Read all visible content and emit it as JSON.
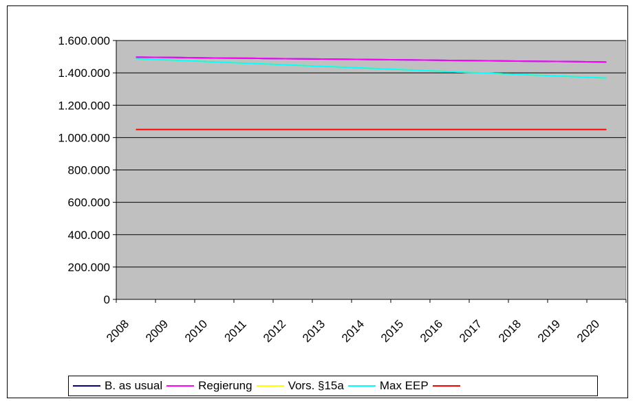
{
  "chart_data": {
    "type": "line",
    "title": "",
    "xlabel": "",
    "ylabel": "",
    "x": [
      "2008",
      "2009",
      "2010",
      "2011",
      "2012",
      "2013",
      "2014",
      "2015",
      "2016",
      "2017",
      "2018",
      "2019",
      "2020"
    ],
    "ylim": [
      0,
      1600000
    ],
    "y_ticks": [
      0,
      200000,
      400000,
      600000,
      800000,
      1000000,
      1200000,
      1400000,
      1600000
    ],
    "y_tick_labels": [
      "0",
      "200.000",
      "400.000",
      "600.000",
      "800.000",
      "1.000.000",
      "1.200.000",
      "1.400.000",
      "1.600.000"
    ],
    "grid": true,
    "plot_background": "#c0c0c0",
    "legend_position": "bottom",
    "series": [
      {
        "name": "B. as usual",
        "color": "#000080",
        "values": [
          1497000,
          1495000,
          1492000,
          1490000,
          1487000,
          1485000,
          1482000,
          1480000,
          1477000,
          1475000,
          1472000,
          1470000,
          1467000
        ]
      },
      {
        "name": "Regierung",
        "color": "#ff00ff",
        "values": [
          1497000,
          1495000,
          1492000,
          1490000,
          1487000,
          1485000,
          1482000,
          1480000,
          1477000,
          1475000,
          1472000,
          1470000,
          1467000
        ]
      },
      {
        "name": "Vors. §15a",
        "color": "#ffff00",
        "values": [
          1488000,
          1478000,
          1468000,
          1458000,
          1448000,
          1438000,
          1428000,
          1418000,
          1408000,
          1398000,
          1388000,
          1378000,
          1368000
        ]
      },
      {
        "name": "Max EEP",
        "color": "#00ffff",
        "values": [
          1488000,
          1478000,
          1468000,
          1458000,
          1448000,
          1438000,
          1428000,
          1418000,
          1408000,
          1398000,
          1388000,
          1378000,
          1368000
        ]
      },
      {
        "name": "",
        "color": "#ff0000",
        "values": [
          1050000,
          1050000,
          1050000,
          1050000,
          1050000,
          1050000,
          1050000,
          1050000,
          1050000,
          1050000,
          1050000,
          1050000,
          1050000
        ]
      }
    ]
  }
}
